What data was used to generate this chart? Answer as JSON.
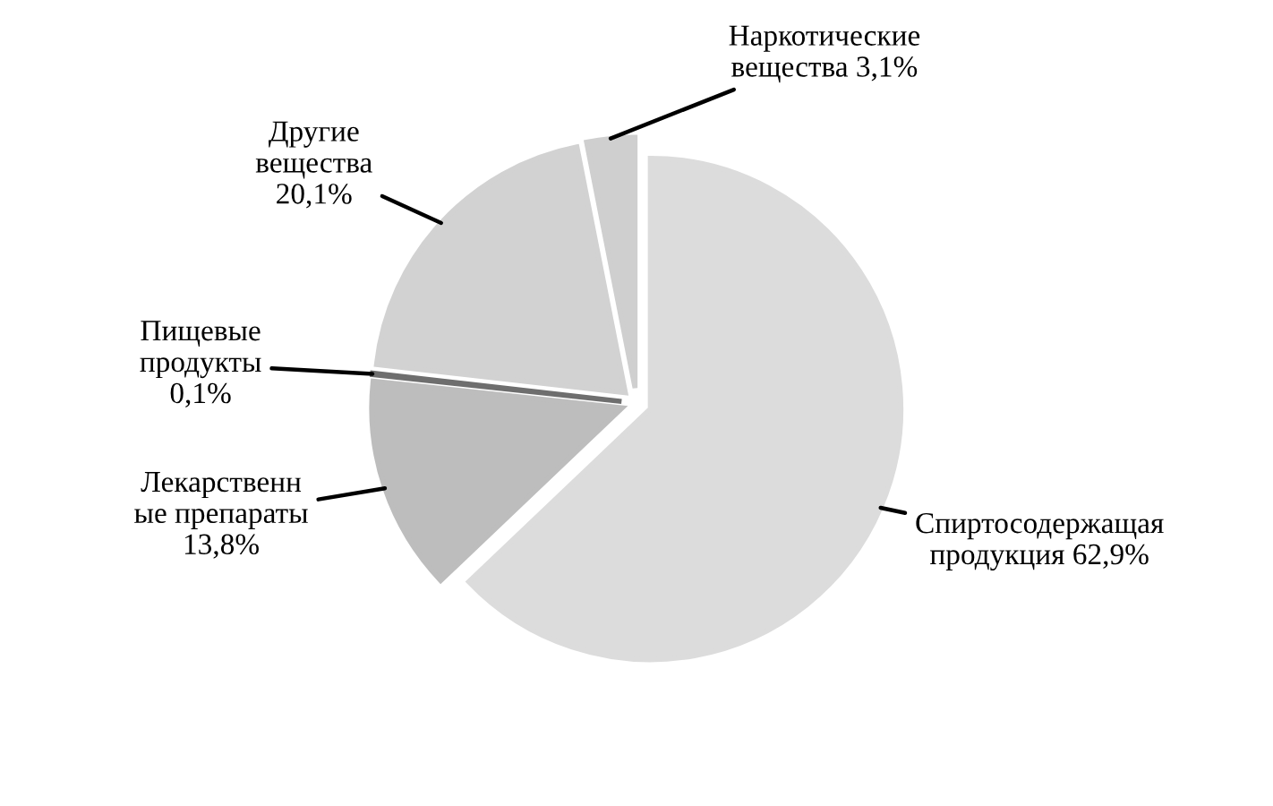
{
  "chart_data": {
    "type": "pie",
    "categories": [
      "Спиртосодержащая\nпродукция",
      "Лекарственн\nые препараты",
      "Пищевые\nпродукты",
      "Другие\nвещества",
      "Наркотические\nвещества"
    ],
    "values": [
      62.9,
      13.8,
      0.1,
      20.1,
      3.1
    ],
    "value_labels": [
      "62,9%",
      "13,8%",
      "0,1%",
      "20,1%",
      "3,1%"
    ],
    "colors": [
      "#dcdcdc",
      "#bdbdbd",
      "#6e6e6e",
      "#d2d2d2",
      "#cfcfcf"
    ]
  }
}
